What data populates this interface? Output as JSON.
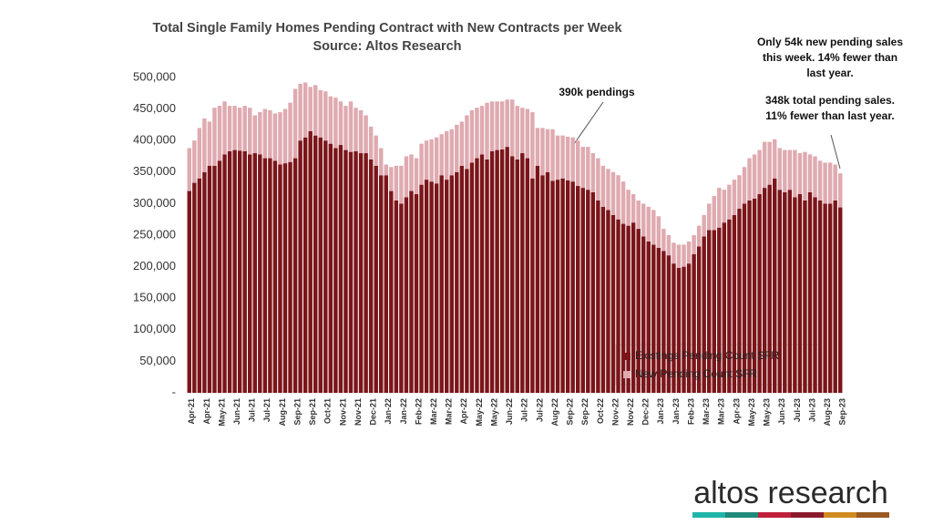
{
  "chart_data": {
    "type": "stacked_bar",
    "title": "Total Single Family Homes Pending Contract with New Contracts per Week",
    "subtitle": "Source: Altos Research",
    "categories": [
      "Apr-21",
      null,
      null,
      "Apr-21",
      null,
      null,
      "May-21",
      null,
      null,
      "Jun-21",
      null,
      null,
      "Jul-21",
      null,
      null,
      "Jul-21",
      null,
      null,
      "Aug-21",
      null,
      null,
      "Sep-21",
      null,
      null,
      "Sep-21",
      null,
      null,
      "Oct-21",
      null,
      null,
      "Nov-21",
      null,
      null,
      "Nov-21",
      null,
      null,
      "Dec-21",
      null,
      null,
      "Jan-22",
      null,
      null,
      "Jan-22",
      null,
      null,
      "Feb-22",
      null,
      null,
      "Mar-22",
      null,
      null,
      "Mar-22",
      null,
      null,
      "Apr-22",
      null,
      null,
      "May-22",
      null,
      null,
      "May-22",
      null,
      null,
      "Jun-22",
      null,
      null,
      "Jul-22",
      null,
      null,
      "Jul-22",
      null,
      null,
      "Aug-22",
      null,
      null,
      "Sep-22",
      null,
      null,
      "Sep-22",
      null,
      null,
      "Oct-22",
      null,
      null,
      "Nov-22",
      null,
      null,
      "Nov-22",
      null,
      null,
      "Dec-22",
      null,
      null,
      "Jan-23",
      null,
      null,
      "Jan-23",
      null,
      null,
      "Feb-23",
      null,
      null,
      "Mar-23",
      null,
      null,
      "Mar-23",
      null,
      null,
      "Apr-23",
      null,
      null,
      "May-23",
      null,
      null,
      "May-23",
      null,
      null,
      "Jun-23",
      null,
      null,
      "Jul-23",
      null,
      null,
      "Jul-23",
      null,
      null,
      "Aug-23",
      null,
      null,
      "Sep-23"
    ],
    "series": [
      {
        "name": "Existings Pending Count SFR",
        "color": "#7b1519",
        "values": [
          320000,
          333000,
          340000,
          350000,
          360000,
          360000,
          368000,
          378000,
          383000,
          385000,
          384000,
          383000,
          378000,
          380000,
          378000,
          372000,
          372000,
          368000,
          362000,
          364000,
          366000,
          372000,
          400000,
          405000,
          415000,
          408000,
          405000,
          400000,
          395000,
          388000,
          393000,
          385000,
          382000,
          383000,
          380000,
          380000,
          370000,
          360000,
          345000,
          345000,
          320000,
          305000,
          300000,
          310000,
          320000,
          315000,
          330000,
          338000,
          335000,
          332000,
          345000,
          338000,
          345000,
          350000,
          360000,
          355000,
          365000,
          372000,
          378000,
          370000,
          383000,
          385000,
          386000,
          390000,
          375000,
          370000,
          380000,
          372000,
          340000,
          360000,
          345000,
          350000,
          336000,
          338000,
          340000,
          337000,
          335000,
          328000,
          325000,
          322000,
          318000,
          305000,
          295000,
          290000,
          282000,
          275000,
          268000,
          265000,
          270000,
          260000,
          248000,
          240000,
          235000,
          230000,
          225000,
          218000,
          205000,
          198000,
          200000,
          205000,
          220000,
          232000,
          248000,
          258000,
          258000,
          262000,
          270000,
          275000,
          282000,
          292000,
          300000,
          305000,
          308000,
          315000,
          325000,
          330000,
          340000,
          322000,
          318000,
          322000,
          310000,
          315000,
          305000,
          318000,
          310000,
          305000,
          300000,
          300000,
          305000,
          294000
        ]
      },
      {
        "name": "New Pending Count SFR",
        "color": "#dfaab0",
        "values": [
          68000,
          67000,
          80000,
          85000,
          70000,
          92000,
          87000,
          84000,
          72000,
          70000,
          68000,
          72000,
          74000,
          60000,
          67000,
          78000,
          76000,
          75000,
          83000,
          86000,
          94000,
          110000,
          90000,
          87000,
          70000,
          80000,
          75000,
          78000,
          75000,
          80000,
          69000,
          70000,
          80000,
          69000,
          68000,
          60000,
          52000,
          48000,
          43000,
          17000,
          38000,
          55000,
          60000,
          65000,
          58000,
          57000,
          65000,
          62000,
          67000,
          73000,
          65000,
          77000,
          73000,
          75000,
          70000,
          85000,
          83000,
          80000,
          77000,
          90000,
          79000,
          77000,
          76000,
          75000,
          90000,
          85000,
          72000,
          78000,
          105000,
          60000,
          75000,
          68000,
          82000,
          70000,
          68000,
          69000,
          70000,
          72000,
          65000,
          68000,
          62000,
          67000,
          65000,
          65000,
          68000,
          70000,
          67000,
          57000,
          45000,
          45000,
          52000,
          55000,
          55000,
          50000,
          35000,
          32000,
          33000,
          37000,
          35000,
          35000,
          30000,
          33000,
          34000,
          42000,
          54000,
          63000,
          52000,
          55000,
          56000,
          53000,
          58000,
          67000,
          70000,
          70000,
          73000,
          68000,
          62000,
          66000,
          67000,
          63000,
          75000,
          65000,
          77000,
          60000,
          65000,
          63000,
          65000,
          65000,
          57000,
          54000
        ]
      }
    ],
    "ylim": [
      0,
      500000
    ],
    "yticks": [
      {
        "value": 0,
        "label": "-"
      },
      {
        "value": 50000,
        "label": "50,000"
      },
      {
        "value": 100000,
        "label": "100,000"
      },
      {
        "value": 150000,
        "label": "150,000"
      },
      {
        "value": 200000,
        "label": "200,000"
      },
      {
        "value": 250000,
        "label": "250,000"
      },
      {
        "value": 300000,
        "label": "300,000"
      },
      {
        "value": 350000,
        "label": "350,000"
      },
      {
        "value": 400000,
        "label": "400,000"
      },
      {
        "value": 450000,
        "label": "450,000"
      },
      {
        "value": 500000,
        "label": "500,000"
      }
    ],
    "grid": false,
    "annotations": [
      "390k pendings",
      "Only 54k new pending sales",
      "this week. 14% fewer than",
      "last year.",
      "348k total pending sales.",
      "11% fewer than last year."
    ]
  },
  "logo": "altos research"
}
